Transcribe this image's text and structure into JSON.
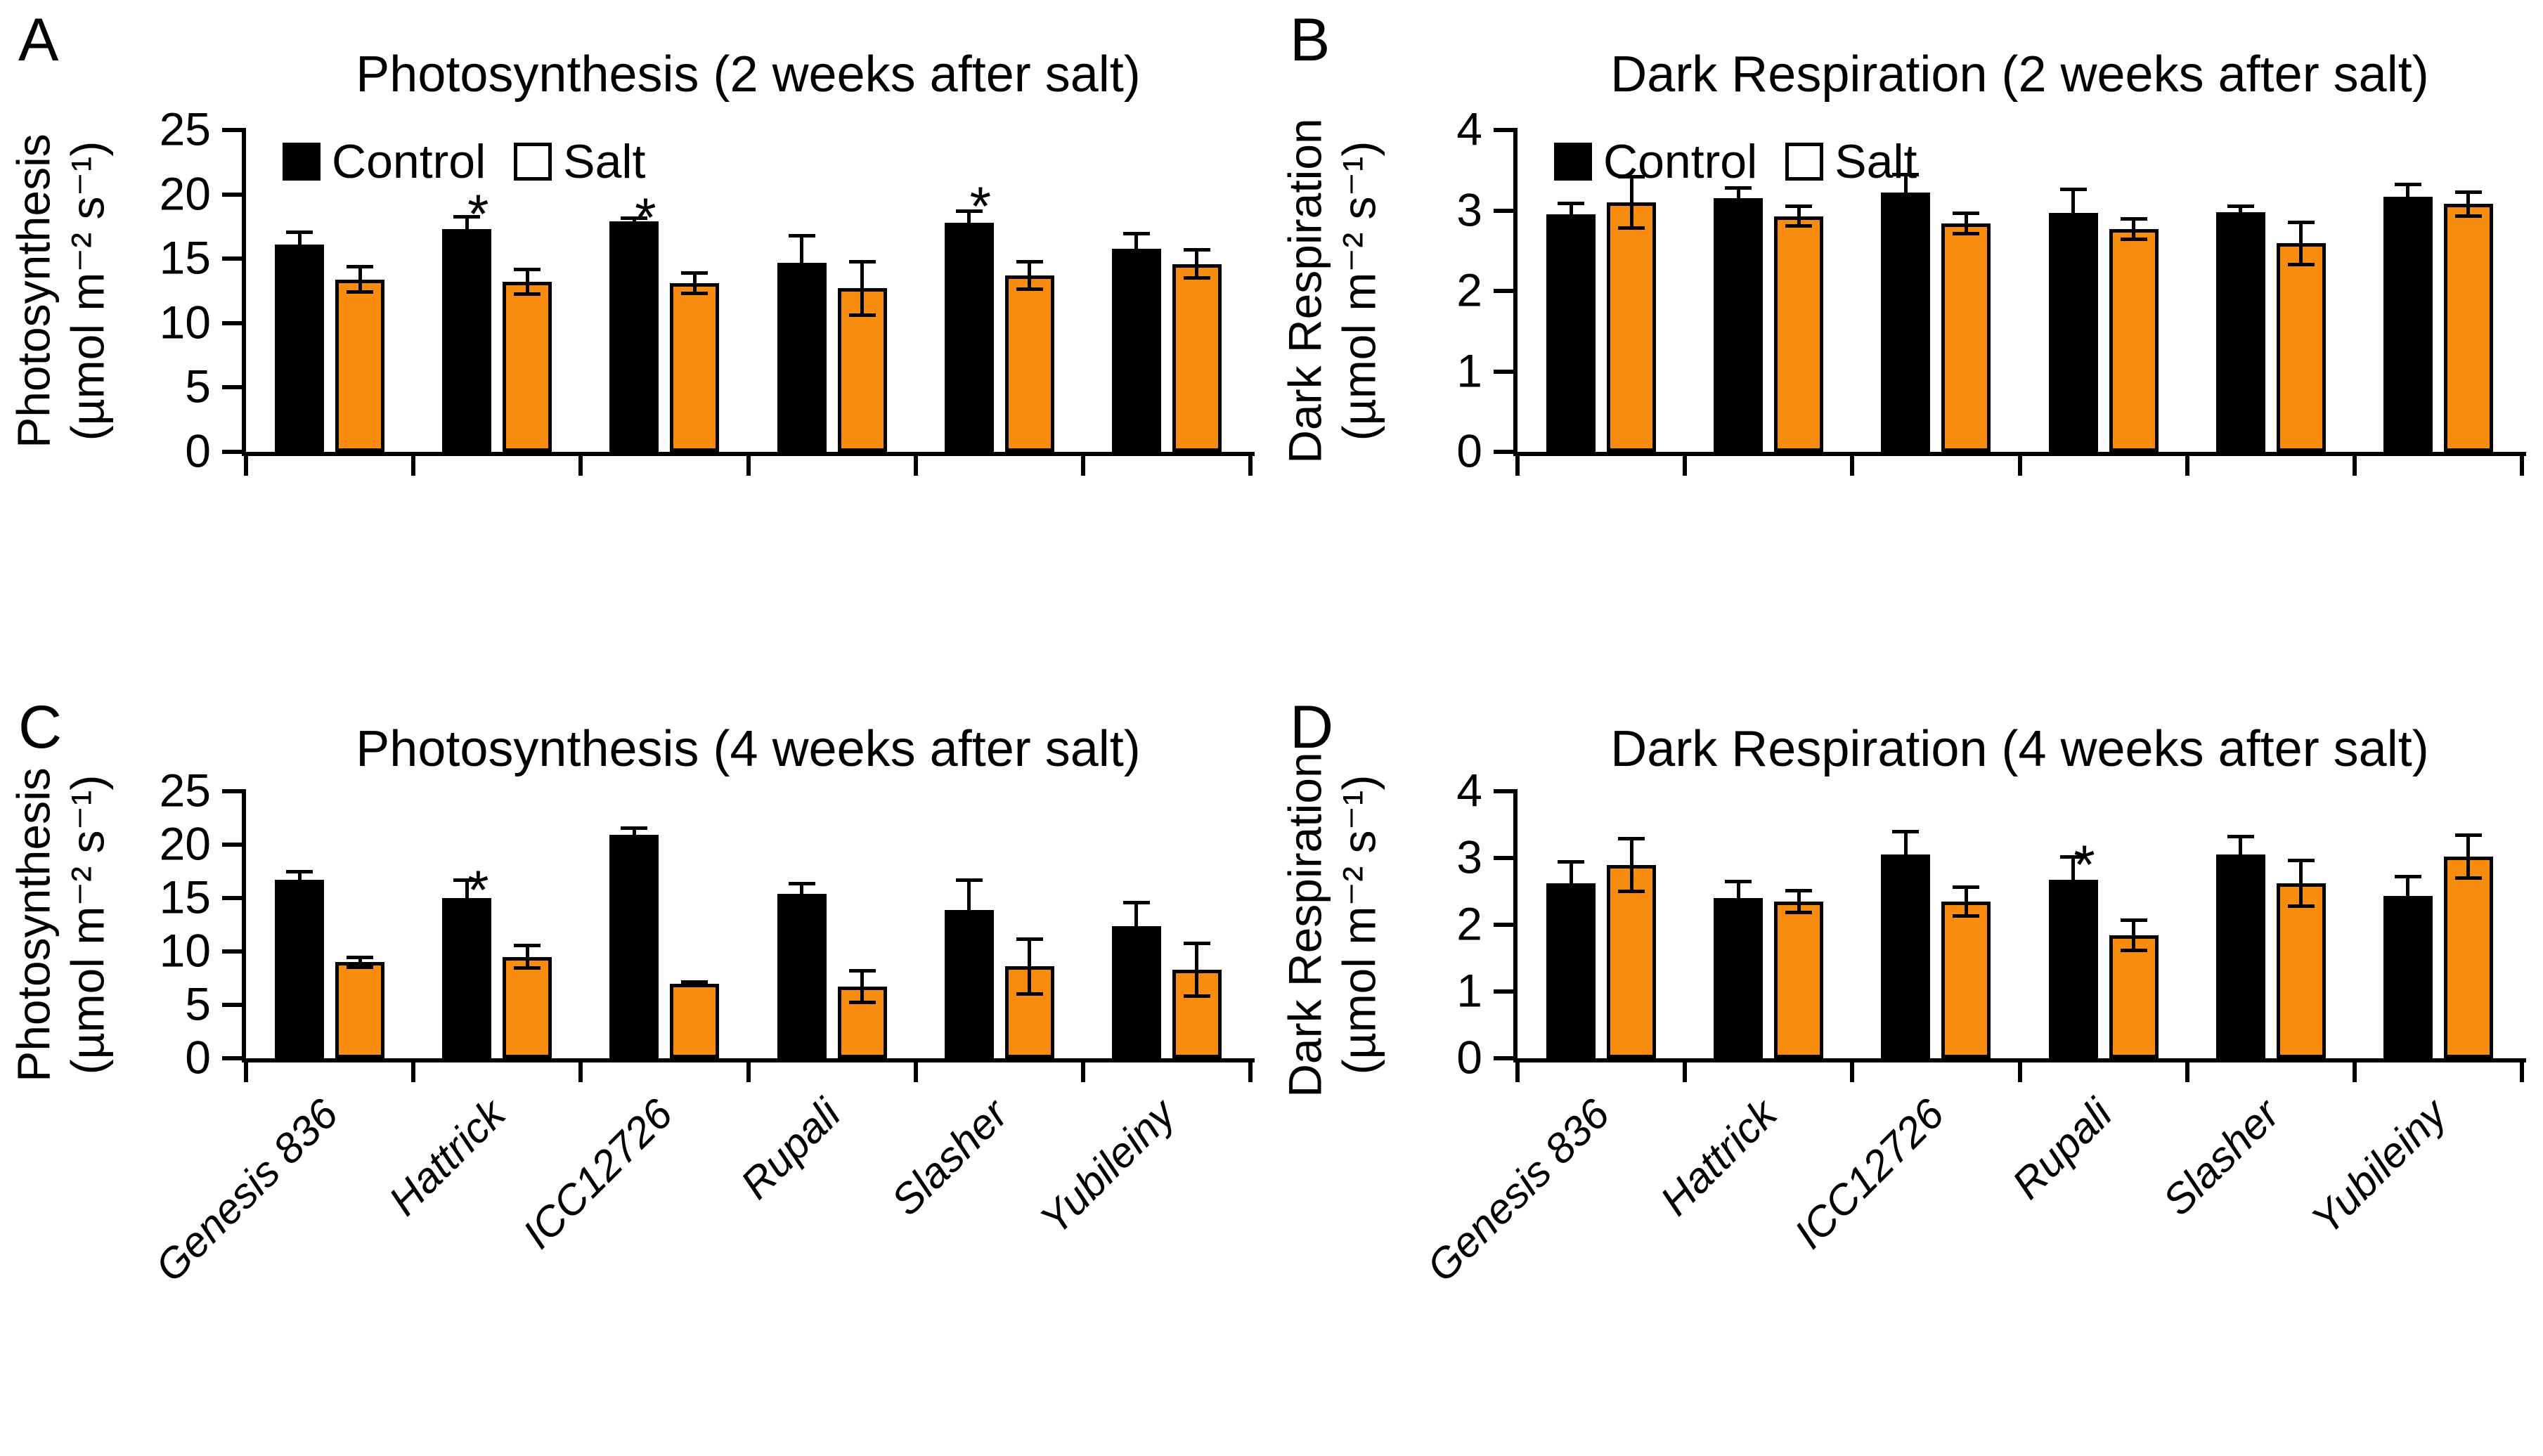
{
  "figure_background": "#ffffff",
  "colors": {
    "control": "#000000",
    "salt": "#F88C0E",
    "axis": "#000000"
  },
  "chart_data": [
    {
      "type": "bar",
      "panel_label": "A",
      "title": "Photosynthesis (2 weeks after salt)",
      "ylabel_line1": "Photosynthesis",
      "ylabel_line2": "(µmol m⁻² s⁻¹)",
      "ylim": [
        0,
        25
      ],
      "yticks": [
        0,
        5,
        10,
        15,
        20,
        25
      ],
      "legend_visible": true,
      "categories": [
        "Genesis 836",
        "Hattrick",
        "ICC12726",
        "Rupali",
        "Slasher",
        "Yubileiny"
      ],
      "series": [
        {
          "name": "Control",
          "color": "#000000",
          "values": [
            16.1,
            17.3,
            17.9,
            14.7,
            17.8,
            15.8
          ],
          "errors": [
            1.0,
            1.0,
            0.3,
            2.1,
            0.9,
            1.2
          ]
        },
        {
          "name": "Salt",
          "color": "#F88C0E",
          "values": [
            13.4,
            13.2,
            13.1,
            12.7,
            13.7,
            14.6
          ],
          "errors": [
            1.0,
            1.0,
            0.8,
            2.1,
            1.1,
            1.1
          ],
          "significant": [
            false,
            true,
            true,
            false,
            true,
            false
          ]
        }
      ]
    },
    {
      "type": "bar",
      "panel_label": "B",
      "title": "Dark Respiration (2 weeks after salt)",
      "ylabel_line1": "Dark Respiration",
      "ylabel_line2": "(µmol m⁻² s⁻¹)",
      "ylim": [
        0,
        4
      ],
      "yticks": [
        0,
        1,
        2,
        3,
        4
      ],
      "legend_visible": true,
      "categories": [
        "Genesis 836",
        "Hattrick",
        "ICC12726",
        "Rupali",
        "Slasher",
        "Yubileiny"
      ],
      "series": [
        {
          "name": "Control",
          "color": "#000000",
          "values": [
            2.95,
            3.15,
            3.22,
            2.97,
            2.98,
            3.17
          ],
          "errors": [
            0.14,
            0.13,
            0.23,
            0.3,
            0.08,
            0.16
          ]
        },
        {
          "name": "Salt",
          "color": "#F88C0E",
          "values": [
            3.1,
            2.93,
            2.84,
            2.77,
            2.59,
            3.08
          ],
          "errors": [
            0.32,
            0.13,
            0.13,
            0.13,
            0.27,
            0.15
          ],
          "significant": [
            false,
            false,
            false,
            false,
            false,
            false
          ]
        }
      ]
    },
    {
      "type": "bar",
      "panel_label": "C",
      "title": "Photosynthesis (4 weeks after salt)",
      "ylabel_line1": "Photosynthesis",
      "ylabel_line2": "(µmol m⁻² s⁻¹)",
      "ylim": [
        0,
        25
      ],
      "yticks": [
        0,
        5,
        10,
        15,
        20,
        25
      ],
      "legend_visible": false,
      "categories": [
        "Genesis 836",
        "Hattrick",
        "ICC12726",
        "Rupali",
        "Slasher",
        "Yubileiny"
      ],
      "series": [
        {
          "name": "Control",
          "color": "#000000",
          "values": [
            16.7,
            15.0,
            20.9,
            15.4,
            13.9,
            12.4
          ],
          "errors": [
            0.8,
            1.7,
            0.7,
            1.0,
            2.8,
            2.2
          ]
        },
        {
          "name": "Salt",
          "color": "#F88C0E",
          "values": [
            9.0,
            9.5,
            7.0,
            6.7,
            8.6,
            8.3
          ],
          "errors": [
            0.5,
            1.1,
            0.2,
            1.5,
            2.6,
            2.5
          ],
          "significant": [
            true,
            true,
            true,
            true,
            false,
            false
          ]
        }
      ]
    },
    {
      "type": "bar",
      "panel_label": "D",
      "title": "Dark Respiration (4 weeks after salt)",
      "ylabel_line1": "Dark Respiration",
      "ylabel_line2": "(µmol m⁻² s⁻¹)",
      "ylim": [
        0,
        4
      ],
      "yticks": [
        0,
        1,
        2,
        3,
        4
      ],
      "legend_visible": false,
      "categories": [
        "Genesis 836",
        "Hattrick",
        "ICC12726",
        "Rupali",
        "Slasher",
        "Yubileiny"
      ],
      "series": [
        {
          "name": "Control",
          "color": "#000000",
          "values": [
            2.62,
            2.4,
            3.05,
            2.67,
            3.05,
            2.43
          ],
          "errors": [
            0.33,
            0.25,
            0.35,
            0.35,
            0.28,
            0.3
          ]
        },
        {
          "name": "Salt",
          "color": "#F88C0E",
          "values": [
            2.9,
            2.35,
            2.35,
            1.84,
            2.62,
            3.02
          ],
          "errors": [
            0.4,
            0.17,
            0.22,
            0.23,
            0.35,
            0.33
          ],
          "significant": [
            false,
            false,
            false,
            true,
            false,
            false
          ]
        }
      ]
    }
  ]
}
